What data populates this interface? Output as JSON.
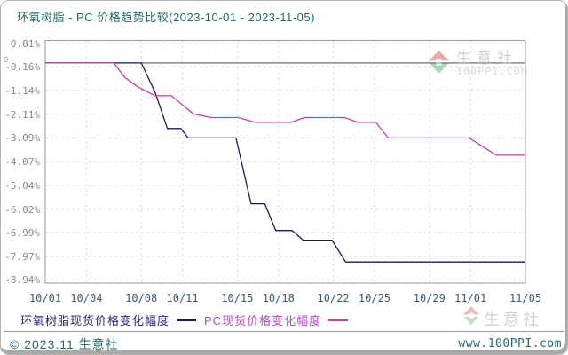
{
  "page": {
    "title": "环氧树脂 - PC 价格趋势比较(2023-10-01 - 2023-11-05)"
  },
  "watermark": {
    "brand": "生意社",
    "site": "100PPI.COM"
  },
  "legend": {
    "items": [
      {
        "label": "环氧树脂现货价格变化幅度",
        "color": "#24247d"
      },
      {
        "label": "PC现货价格变化幅度",
        "color": "#b844c4"
      }
    ]
  },
  "footer": {
    "copyright": "© 2023.11 生意社",
    "url": "www.100PPI.com"
  },
  "chart_data": {
    "type": "line",
    "title": "环氧树脂 - PC 价格趋势比较(2023-10-01 - 2023-11-05)",
    "xlabel": "",
    "ylabel": "",
    "grid": true,
    "legend_position": "bottom",
    "zero_label": "0",
    "x_range_days": [
      0,
      35
    ],
    "ylim": [
      -9.07,
      0.93
    ],
    "x_tick_labels": [
      "10/01",
      "10/04",
      "10/08",
      "10/11",
      "10/15",
      "10/18",
      "10/22",
      "10/25",
      "10/29",
      "11/01",
      "11/05"
    ],
    "x_tick_days": [
      0,
      3,
      7,
      10,
      14,
      17,
      21,
      24,
      28,
      31,
      35
    ],
    "y_tick_labels": [
      "0.81%",
      "-0.16%",
      "-1.14%",
      "-2.11%",
      "-3.09%",
      "-4.07%",
      "-5.04%",
      "-6.02%",
      "-6.99%",
      "-7.97%",
      "-8.94%"
    ],
    "y_tick_values": [
      0.81,
      -0.16,
      -1.14,
      -2.11,
      -3.09,
      -4.07,
      -5.04,
      -6.02,
      -6.99,
      -7.97,
      -8.94
    ],
    "series": [
      {
        "name": "环氧树脂现货价格变化幅度",
        "color": "#1b1b58",
        "points": [
          [
            0,
            0
          ],
          [
            7,
            0
          ],
          [
            8,
            -1.2
          ],
          [
            8.9,
            -2.7
          ],
          [
            9.9,
            -2.7
          ],
          [
            10.4,
            -3.09
          ],
          [
            13.9,
            -3.09
          ],
          [
            15,
            -5.8
          ],
          [
            16,
            -5.8
          ],
          [
            16.8,
            -6.9
          ],
          [
            18,
            -6.9
          ],
          [
            18.8,
            -7.3
          ],
          [
            20.9,
            -7.3
          ],
          [
            21.9,
            -8.2
          ],
          [
            35,
            -8.2
          ]
        ]
      },
      {
        "name": "PC现货价格变化幅度",
        "color": "#c73f9f",
        "points": [
          [
            0,
            0
          ],
          [
            5,
            0
          ],
          [
            5.8,
            -0.6
          ],
          [
            6.8,
            -1.0
          ],
          [
            8,
            -1.35
          ],
          [
            9.2,
            -1.35
          ],
          [
            10.8,
            -2.1
          ],
          [
            12.1,
            -2.25
          ],
          [
            14.1,
            -2.25
          ],
          [
            15.3,
            -2.45
          ],
          [
            17.9,
            -2.45
          ],
          [
            18.9,
            -2.25
          ],
          [
            21.8,
            -2.25
          ],
          [
            22.8,
            -2.45
          ],
          [
            24.1,
            -2.45
          ],
          [
            25,
            -3.09
          ],
          [
            30.9,
            -3.09
          ],
          [
            32.9,
            -3.8
          ],
          [
            35,
            -3.8
          ]
        ]
      }
    ]
  }
}
